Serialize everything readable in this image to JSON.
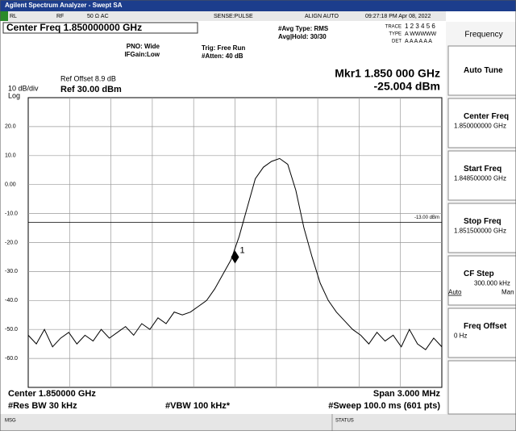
{
  "window": {
    "title": "Agilent Spectrum Analyzer - Swept SA"
  },
  "status_row": [
    "RL",
    "RF",
    "50 Ω  AC",
    "SENSE:PULSE",
    "ALIGN AUTO",
    "09:27:18 PM Apr 08, 2022"
  ],
  "header": {
    "center_freq": "Center Freq 1.850000000 GHz",
    "pno": "PNO: Wide",
    "ifgain": "IFGain:Low",
    "trig": "Trig: Free Run",
    "atten": "#Atten: 40 dB",
    "avg_type": "#Avg Type: RMS",
    "avg_hold": "Avg|Hold: 30/30",
    "trace_row": "TRACE",
    "trace_nums": "1 2 3 4 5 6",
    "type_row": "TYPE",
    "type_vals": "A WWWWW",
    "det_row": "DET",
    "det_vals": "A A A A A A",
    "ref_offset": "Ref Offset 8.9 dB",
    "scale": "10 dB/div",
    "ref": "Ref 30.00 dBm",
    "log": "Log",
    "marker_freq": "Mkr1 1.850 000 GHz",
    "marker_level": "-25.004 dBm"
  },
  "display": {
    "ylim": [
      -70,
      30
    ],
    "yticks": [
      {
        "value": 20,
        "label": "20.0"
      },
      {
        "value": 10,
        "label": "10.0"
      },
      {
        "value": 0,
        "label": "0.00"
      },
      {
        "value": -10,
        "label": "-10.0"
      },
      {
        "value": -20,
        "label": "-20.0"
      },
      {
        "value": -30,
        "label": "-30.0"
      },
      {
        "value": -40,
        "label": "-40.0"
      },
      {
        "value": -50,
        "label": "-50.0"
      },
      {
        "value": -60,
        "label": "-60.0"
      }
    ],
    "display_line": -13,
    "display_line_label": "-13.00 dBm",
    "marker": {
      "label": "1",
      "value": -25.004
    },
    "trace": [
      -52,
      -55,
      -50,
      -56,
      -53,
      -51,
      -55,
      -52,
      -54,
      -50,
      -53,
      -51,
      -49,
      -52,
      -48,
      -50,
      -46,
      -48,
      -44,
      -45,
      -44,
      -42,
      -40,
      -36,
      -31,
      -26,
      -18,
      -8,
      2,
      6,
      8,
      9,
      7,
      -2,
      -15,
      -25,
      -34,
      -40,
      -44,
      -47,
      -50,
      -52,
      -55,
      -51,
      -54,
      -52,
      -56,
      -50,
      -55,
      -57,
      -53,
      -56
    ]
  },
  "footer": {
    "center": "Center 1.850000 GHz",
    "span": "Span 3.000 MHz",
    "rbw": "#Res BW 30 kHz",
    "vbw": "#VBW 100 kHz*",
    "sweep": "#Sweep  100.0 ms (601 pts)"
  },
  "status_bar": {
    "msg": "MSG",
    "status": "STATUS"
  },
  "softkeys": {
    "menu": "Frequency",
    "keys": [
      {
        "label": "Auto Tune"
      },
      {
        "label": "Center Freq",
        "value": "1.850000000 GHz"
      },
      {
        "label": "Start Freq",
        "value": "1.848500000 GHz"
      },
      {
        "label": "Stop Freq",
        "value": "1.851500000 GHz"
      },
      {
        "label": "CF Step",
        "value": "300.000 kHz",
        "auto": "Auto",
        "man": "Man"
      },
      {
        "label": "Freq Offset",
        "value": "0 Hz"
      }
    ]
  }
}
